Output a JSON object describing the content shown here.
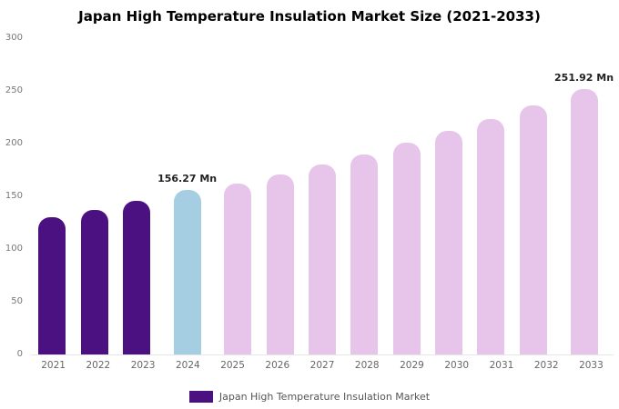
{
  "title": "Japan High Temperature Insulation Market Size (2021-2033)",
  "legend": {
    "label": "Japan High Temperature Insulation Market"
  },
  "colors": {
    "past": "#4b1181",
    "current": "#a6cee3",
    "forecast": "#e7c4ea"
  },
  "chart_data": {
    "type": "bar",
    "title": "Japan High Temperature Insulation Market Size (2021-2033)",
    "categories": [
      "2021",
      "2022",
      "2023",
      "2024",
      "2025",
      "2026",
      "2027",
      "2028",
      "2029",
      "2030",
      "2031",
      "2032",
      "2033"
    ],
    "values": [
      130,
      137,
      146,
      156.27,
      162,
      171,
      180,
      190,
      201,
      212,
      223,
      236,
      251.92
    ],
    "bar_colors": [
      "past",
      "past",
      "past",
      "current",
      "forecast",
      "forecast",
      "forecast",
      "forecast",
      "forecast",
      "forecast",
      "forecast",
      "forecast",
      "forecast"
    ],
    "annotations": [
      {
        "index": 3,
        "text": "156.27 Mn"
      },
      {
        "index": 12,
        "text": "251.92 Mn"
      }
    ],
    "xlabel": "",
    "ylabel": "",
    "ylim": [
      0,
      300
    ],
    "yticks": [
      0,
      50,
      100,
      150,
      200,
      250,
      300
    ],
    "grid": false,
    "legend_position": "bottom",
    "unit": "Mn"
  }
}
